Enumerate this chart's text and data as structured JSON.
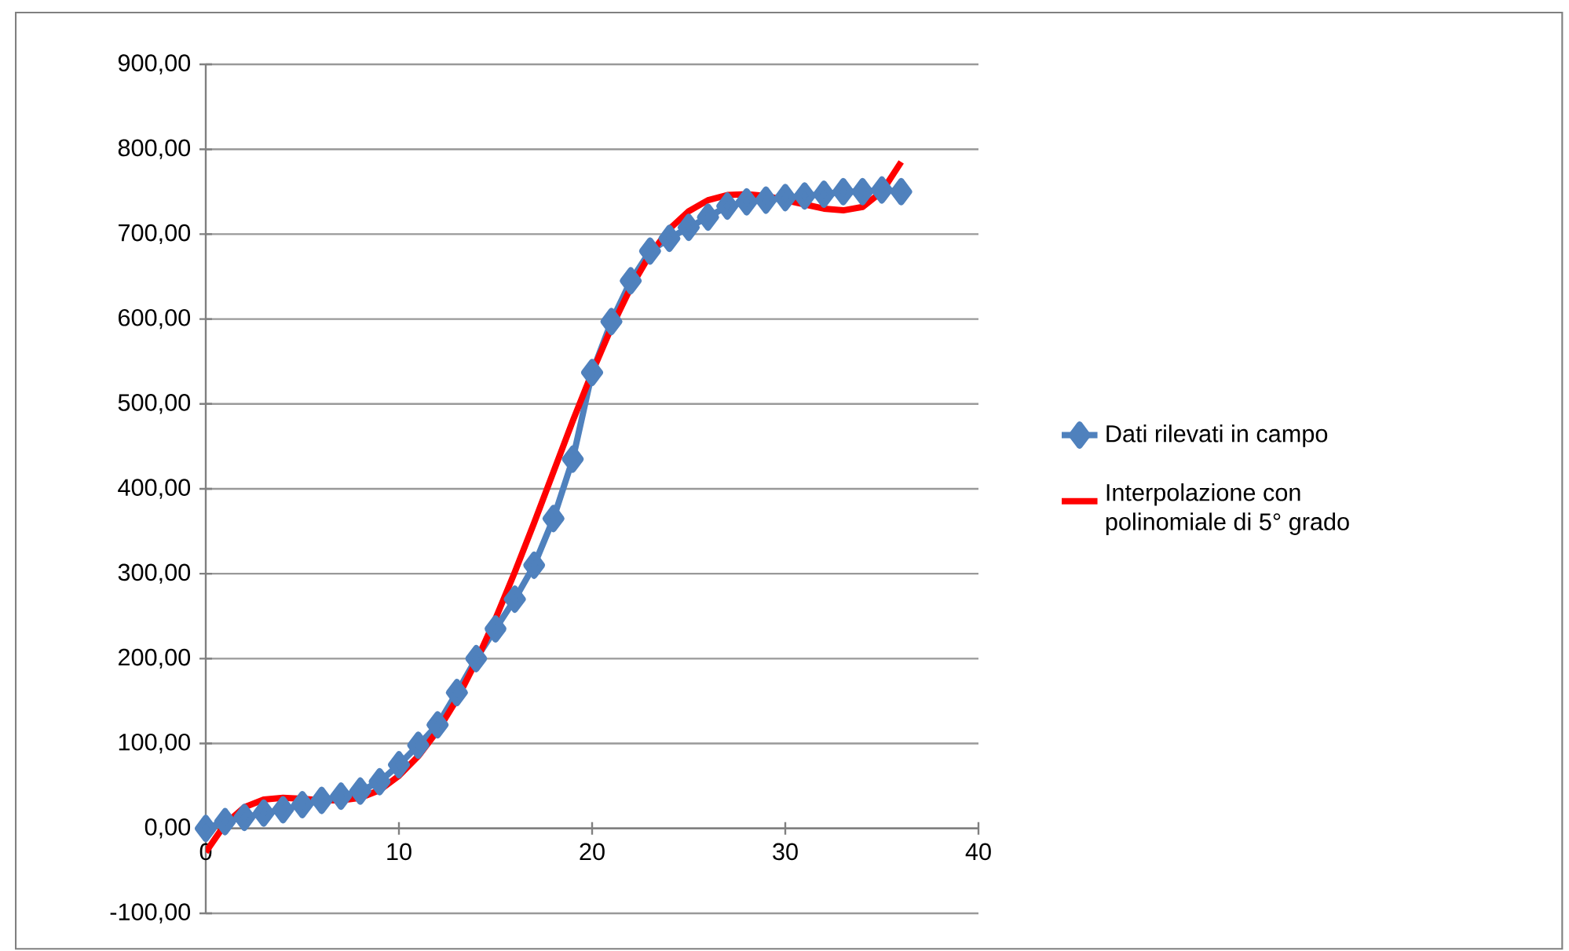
{
  "chart_data": {
    "type": "line",
    "x": [
      0,
      1,
      2,
      3,
      4,
      5,
      6,
      7,
      8,
      9,
      10,
      11,
      12,
      13,
      14,
      15,
      16,
      17,
      18,
      19,
      20,
      21,
      22,
      23,
      24,
      25,
      26,
      27,
      28,
      29,
      30,
      31,
      32,
      33,
      34,
      35,
      36
    ],
    "series": [
      {
        "name": "Dati rilevati in campo",
        "color": "#4f81bd",
        "marker": "diamond",
        "values": [
          0,
          8,
          13,
          18,
          22,
          28,
          33,
          38,
          44,
          55,
          75,
          98,
          122,
          160,
          200,
          235,
          270,
          310,
          365,
          435,
          537,
          597,
          645,
          680,
          695,
          708,
          720,
          733,
          738,
          740,
          743,
          745,
          747,
          750,
          750,
          752,
          750
        ]
      },
      {
        "name": "Interpolazione con polinomiale di 5° grado",
        "color": "#ff0000",
        "marker": "none",
        "values": [
          -28,
          5,
          25,
          34,
          36,
          35,
          33,
          33,
          36,
          45,
          62,
          85,
          115,
          152,
          197,
          247,
          302,
          360,
          420,
          480,
          537,
          590,
          637,
          676,
          706,
          727,
          740,
          746,
          747,
          745,
          740,
          735,
          730,
          728,
          732,
          750,
          785
        ]
      }
    ],
    "xlim": [
      0,
      40
    ],
    "xticks": [
      0,
      10,
      20,
      30,
      40
    ],
    "ylim": [
      -100,
      900
    ],
    "yticks": [
      {
        "value": -100,
        "label": "-100,00"
      },
      {
        "value": 0,
        "label": "0,00"
      },
      {
        "value": 100,
        "label": "100,00"
      },
      {
        "value": 200,
        "label": "200,00"
      },
      {
        "value": 300,
        "label": "300,00"
      },
      {
        "value": 400,
        "label": "400,00"
      },
      {
        "value": 500,
        "label": "500,00"
      },
      {
        "value": 600,
        "label": "600,00"
      },
      {
        "value": 700,
        "label": "700,00"
      },
      {
        "value": 800,
        "label": "800,00"
      },
      {
        "value": 900,
        "label": "900,00"
      }
    ],
    "grid": "y",
    "legend": "right"
  }
}
